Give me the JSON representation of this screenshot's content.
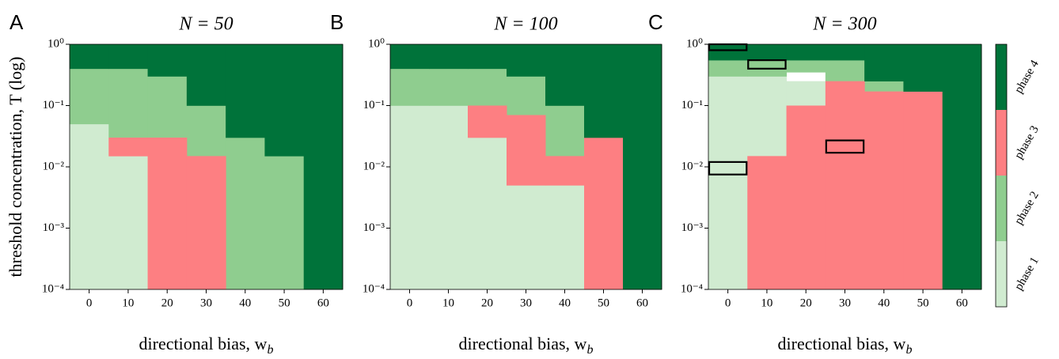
{
  "chart_data": [
    {
      "type": "heatmap",
      "label": "A",
      "title": "N = 50",
      "ylabel": "threshold concentration, T (log)",
      "xlabel": "directional bias, w",
      "xlabel_sub": "b",
      "x": [
        0,
        10,
        20,
        30,
        40,
        50,
        60
      ],
      "xlim": [
        -5,
        65
      ],
      "xticks": [
        0,
        10,
        20,
        30,
        40,
        50,
        60
      ],
      "log_y": true,
      "ylim": [
        0.0001,
        1
      ],
      "yticks": [
        {
          "value": 0.0001,
          "label": "10⁻⁴"
        },
        {
          "value": 0.001,
          "label": "10⁻³"
        },
        {
          "value": 0.01,
          "label": "10⁻²"
        },
        {
          "value": 0.1,
          "label": "10⁻¹"
        },
        {
          "value": 1,
          "label": "10⁰"
        }
      ],
      "series": [
        {
          "color": "#d0ebd0",
          "low": [
            0.0001,
            0.0001,
            null,
            null,
            null,
            null,
            null
          ],
          "high": [
            0.05,
            0.015,
            null,
            null,
            null,
            null,
            null
          ]
        },
        {
          "color": "#8fcd8f",
          "low": [
            0.05,
            0.03,
            0.03,
            0.015,
            0.0001,
            0.0001,
            null
          ],
          "high": [
            0.4,
            0.4,
            0.3,
            0.1,
            0.03,
            0.015,
            null
          ]
        },
        {
          "color": "#fd7f82",
          "low": [
            null,
            0.015,
            0.0001,
            0.0001,
            null,
            null,
            null
          ],
          "high": [
            null,
            0.03,
            0.03,
            0.015,
            null,
            null,
            null
          ]
        },
        {
          "color": "#00733a",
          "low": [
            0.4,
            0.4,
            0.3,
            0.1,
            0.03,
            0.015,
            0.0001
          ],
          "high": [
            1,
            1,
            1,
            1,
            1,
            1,
            1
          ]
        }
      ]
    },
    {
      "type": "heatmap",
      "label": "B",
      "title": "N = 100",
      "xlabel": "directional bias, w",
      "xlabel_sub": "b",
      "x": [
        0,
        10,
        20,
        30,
        40,
        50,
        60
      ],
      "xlim": [
        -5,
        65
      ],
      "xticks": [
        0,
        10,
        20,
        30,
        40,
        50,
        60
      ],
      "log_y": true,
      "ylim": [
        0.0001,
        1
      ],
      "yticks": [
        {
          "value": 0.0001,
          "label": "10⁻⁴"
        },
        {
          "value": 0.001,
          "label": "10⁻³"
        },
        {
          "value": 0.01,
          "label": "10⁻²"
        },
        {
          "value": 0.1,
          "label": "10⁻¹"
        },
        {
          "value": 1,
          "label": "10⁰"
        }
      ],
      "series": [
        {
          "color": "#d0ebd0",
          "low": [
            0.0001,
            0.0001,
            0.0001,
            0.0001,
            0.0001,
            null,
            null
          ],
          "high": [
            0.1,
            0.1,
            0.03,
            0.005,
            0.005,
            null,
            null
          ]
        },
        {
          "color": "#8fcd8f",
          "low": [
            0.1,
            0.1,
            0.1,
            0.07,
            0.015,
            null,
            null
          ],
          "high": [
            0.4,
            0.4,
            0.4,
            0.3,
            0.1,
            null,
            null
          ]
        },
        {
          "color": "#fd7f82",
          "low": [
            null,
            null,
            0.03,
            0.005,
            0.005,
            0.0001,
            null
          ],
          "high": [
            null,
            null,
            0.1,
            0.07,
            0.015,
            0.03,
            null
          ]
        },
        {
          "color": "#00733a",
          "low": [
            0.4,
            0.4,
            0.4,
            0.3,
            0.1,
            0.03,
            0.0001
          ],
          "high": [
            1,
            1,
            1,
            1,
            1,
            1,
            1
          ]
        }
      ]
    },
    {
      "type": "heatmap",
      "label": "C",
      "title": "N = 300",
      "xlabel": "directional bias, w",
      "xlabel_sub": "b",
      "x": [
        0,
        10,
        20,
        30,
        40,
        50,
        60
      ],
      "xlim": [
        -5,
        65
      ],
      "xticks": [
        0,
        10,
        20,
        30,
        40,
        50,
        60
      ],
      "log_y": true,
      "ylim": [
        0.0001,
        1
      ],
      "yticks": [
        {
          "value": 0.0001,
          "label": "10⁻⁴"
        },
        {
          "value": 0.001,
          "label": "10⁻³"
        },
        {
          "value": 0.01,
          "label": "10⁻²"
        },
        {
          "value": 0.1,
          "label": "10⁻¹"
        },
        {
          "value": 1,
          "label": "10⁰"
        }
      ],
      "series": [
        {
          "color": "#d0ebd0",
          "low": [
            0.0001,
            0.015,
            0.1,
            null,
            null,
            null,
            null
          ],
          "high": [
            0.3,
            0.3,
            0.25,
            null,
            null,
            null,
            null
          ]
        },
        {
          "color": "#8fcd8f",
          "low": [
            0.3,
            0.3,
            0.35,
            0.25,
            0.17,
            null,
            null
          ],
          "high": [
            0.55,
            0.55,
            0.55,
            0.55,
            0.25,
            null,
            null
          ]
        },
        {
          "color": "#fd7f82",
          "low": [
            null,
            0.0001,
            0.0001,
            0.0001,
            0.0001,
            0.0001,
            null
          ],
          "high": [
            null,
            0.015,
            0.1,
            0.25,
            0.17,
            0.17,
            null
          ]
        },
        {
          "color": "#00733a",
          "low": [
            0.55,
            0.55,
            0.55,
            0.55,
            0.25,
            0.17,
            0.0001
          ],
          "high": [
            1,
            1,
            1,
            1,
            1,
            1,
            1
          ]
        }
      ],
      "boxes": [
        {
          "x": 0,
          "y": [
            0.8,
            1
          ]
        },
        {
          "x": 10,
          "y": [
            0.4,
            0.55
          ]
        },
        {
          "x": 30,
          "y": [
            0.017,
            0.027
          ]
        },
        {
          "x": 0,
          "y": [
            0.0075,
            0.012
          ]
        }
      ],
      "colorbar": [
        {
          "name": "phase 1",
          "color": "#d0ebd0"
        },
        {
          "name": "phase 2",
          "color": "#8fcd8f"
        },
        {
          "name": "phase 3",
          "color": "#fd7f82"
        },
        {
          "name": "phase 4",
          "color": "#00733a"
        }
      ]
    }
  ]
}
